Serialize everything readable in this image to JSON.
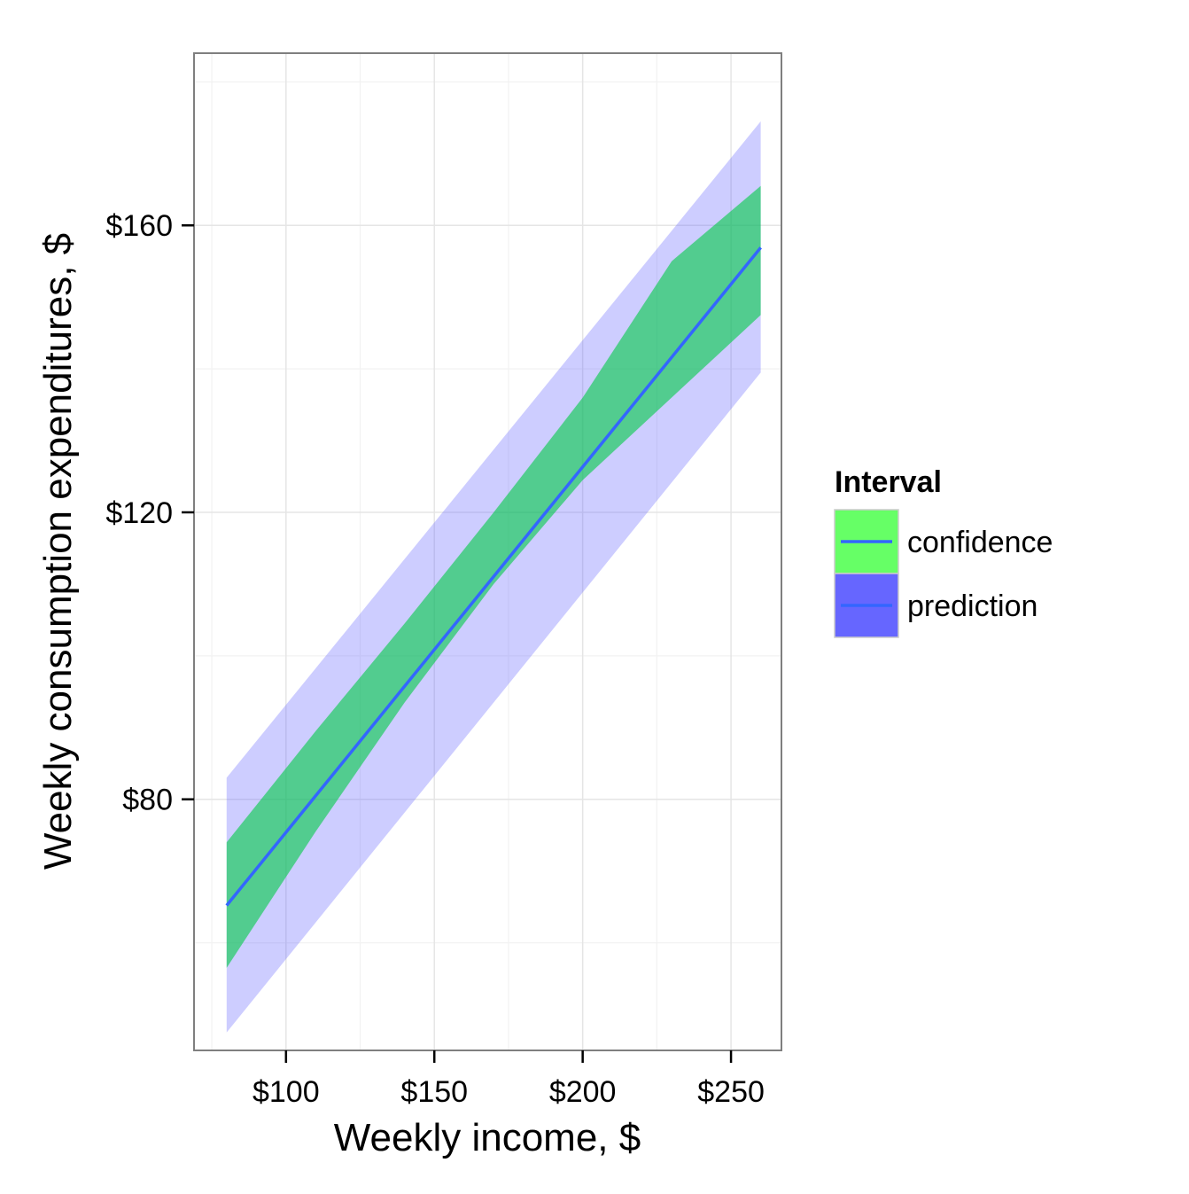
{
  "chart_data": {
    "type": "line",
    "title": "",
    "xlabel": "Weekly income, $",
    "ylabel": "Weekly consumption expenditures, $",
    "xlim": [
      69,
      267
    ],
    "ylim": [
      45,
      184
    ],
    "x_ticks": [
      {
        "value": 100,
        "label": "$100"
      },
      {
        "value": 150,
        "label": "$150"
      },
      {
        "value": 200,
        "label": "$200"
      },
      {
        "value": 250,
        "label": "$250"
      }
    ],
    "y_ticks": [
      {
        "value": 80,
        "label": "$80"
      },
      {
        "value": 120,
        "label": "$120"
      },
      {
        "value": 160,
        "label": "$160"
      }
    ],
    "grid": true,
    "fit_line": {
      "x": [
        80,
        260
      ],
      "y": [
        65.2,
        156.9
      ],
      "color": "#3366ff"
    },
    "series": [
      {
        "name": "confidence",
        "color": "#00cc44",
        "x": [
          80,
          110,
          140,
          170,
          200,
          230,
          260
        ],
        "lower": [
          56.5,
          75.5,
          93.5,
          110.0,
          124.5,
          136.0,
          147.5
        ],
        "upper": [
          74.0,
          89.5,
          104.5,
          120.0,
          136.0,
          155.0,
          165.5
        ]
      },
      {
        "name": "prediction",
        "color": "#6666ff",
        "x": [
          80,
          260
        ],
        "lower": [
          47.5,
          139.5
        ],
        "upper": [
          83.0,
          174.5
        ]
      }
    ],
    "legend": {
      "title": "Interval",
      "placement": "right",
      "items": [
        {
          "label": "confidence",
          "fill": "#66ff66",
          "line": "#3366ff"
        },
        {
          "label": "prediction",
          "fill": "#6666ff",
          "line": "#3366ff"
        }
      ]
    }
  }
}
